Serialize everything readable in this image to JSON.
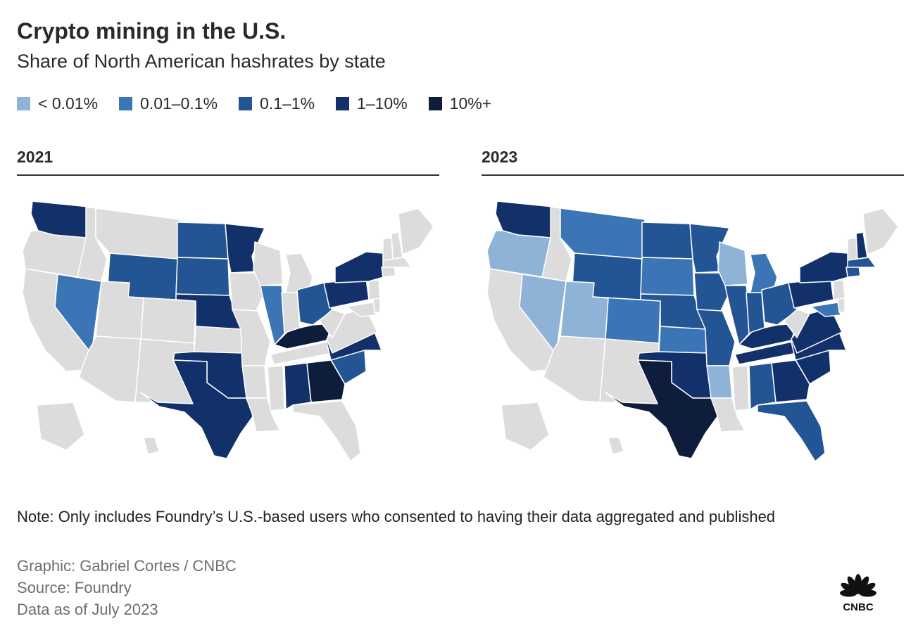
{
  "header": {
    "title": "Crypto mining in the U.S.",
    "subtitle": "Share of North American hashrates by state"
  },
  "legend": [
    {
      "label": "< 0.01%",
      "color": "#8fb3d6"
    },
    {
      "label": "0.01–0.1%",
      "color": "#3b75b5"
    },
    {
      "label": "0.1–1%",
      "color": "#235494"
    },
    {
      "label": "1–10%",
      "color": "#12306a"
    },
    {
      "label": "10%+",
      "color": "#0d1d3b"
    }
  ],
  "no_data_color": "#dcdcdc",
  "panels": [
    {
      "year": "2021",
      "states": {
        "WA": "1–10%",
        "ND": "0.1–1%",
        "SD": "0.1–1%",
        "MN": "1–10%",
        "WY": "0.1–1%",
        "NE": "1–10%",
        "NV": "0.01–0.1%",
        "IL": "0.01–0.1%",
        "OH": "0.1–1%",
        "NY": "1–10%",
        "PA": "1–10%",
        "KY": "10%+",
        "GA": "10%+",
        "NC": "1–10%",
        "SC": "0.1–1%",
        "AL": "1–10%",
        "OK": "1–10%",
        "TX": "1–10%"
      }
    },
    {
      "year": "2023",
      "states": {
        "WA": "1–10%",
        "OR": "< 0.01%",
        "NV": "< 0.01%",
        "UT": "< 0.01%",
        "MT": "0.01–0.1%",
        "WY": "0.1–1%",
        "CO": "0.01–0.1%",
        "ND": "0.1–1%",
        "SD": "0.01–0.1%",
        "NE": "0.1–1%",
        "KS": "0.01–0.1%",
        "OK": "1–10%",
        "TX": "10%+",
        "MN": "0.1–1%",
        "IA": "0.1–1%",
        "MO": "0.1–1%",
        "AR": "< 0.01%",
        "WI": "< 0.01%",
        "IL": "0.1–1%",
        "MI": "0.01–0.1%",
        "IN": "0.1–1%",
        "OH": "0.1–1%",
        "KY": "1–10%",
        "TN": "1–10%",
        "AL": "0.1–1%",
        "GA": "1–10%",
        "FL": "0.1–1%",
        "SC": "1–10%",
        "NC": "1–10%",
        "VA": "1–10%",
        "PA": "1–10%",
        "NY": "1–10%",
        "NH": "1–10%",
        "MA": "0.1–1%",
        "CT": "0.1–1%",
        "MD": "0.01–0.1%"
      }
    }
  ],
  "footer": {
    "note": "Note: Only includes Foundry’s U.S.-based users who consented to having their data aggregated and published",
    "graphic": "Graphic: Gabriel Cortes / CNBC",
    "source": "Source: Foundry",
    "data_as_of": "Data as of July 2023",
    "logo_text": "CNBC"
  }
}
